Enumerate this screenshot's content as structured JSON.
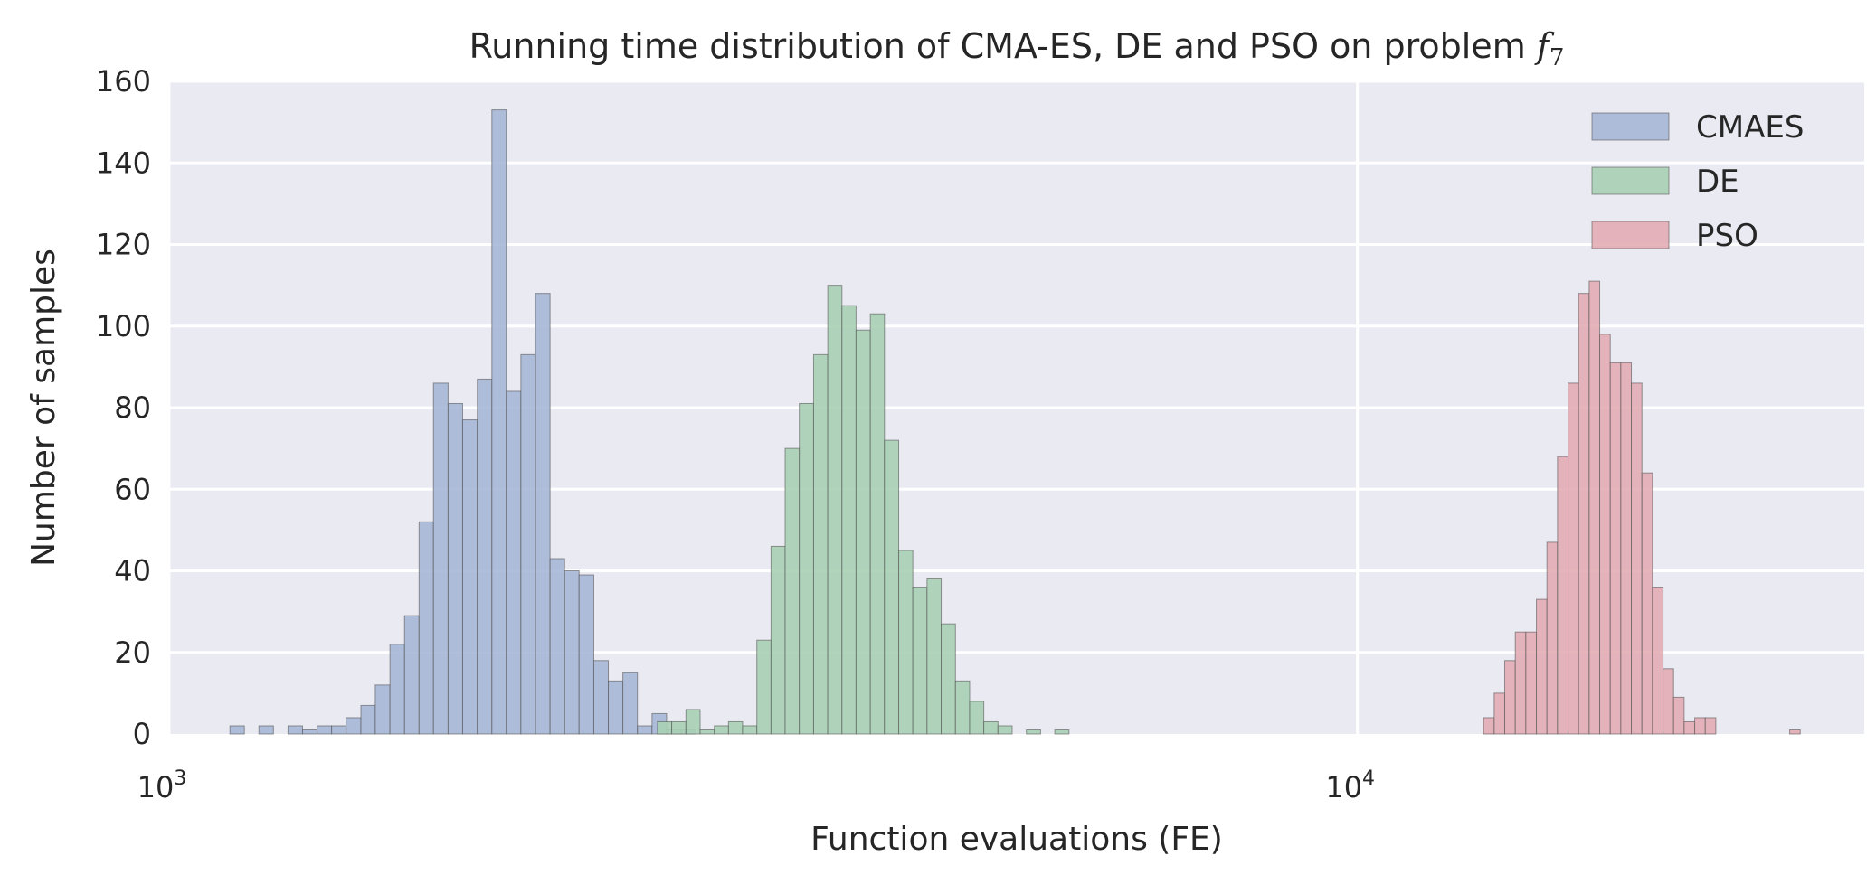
{
  "chart_data": {
    "type": "bar",
    "title": {
      "text": "Running time distribution of CMA-ES, DE and PSO on problem ",
      "math_symbol": "f",
      "math_subscript": "7"
    },
    "xlabel": "Function evaluations (FE)",
    "ylabel": "Number of samples",
    "x_scale": "log",
    "xlim": [
      1000,
      26700
    ],
    "ylim": [
      0,
      160
    ],
    "x_ticks": [
      {
        "value": 1000,
        "base": "10",
        "exponent": "3"
      },
      {
        "value": 10000,
        "base": "10",
        "exponent": "4"
      }
    ],
    "y_ticks": [
      0,
      20,
      40,
      60,
      80,
      100,
      120,
      140,
      160
    ],
    "grid": true,
    "legend": {
      "position": "top-right"
    },
    "background": "#eaeaf2",
    "series": [
      {
        "name": "CMAES",
        "color": "#a6b7d6",
        "bin_edges": [
          1125,
          1157,
          1190,
          1224,
          1259,
          1295,
          1332,
          1370,
          1409,
          1450,
          1491,
          1534,
          1578,
          1623,
          1669,
          1717,
          1766,
          1817,
          1869,
          1922,
          1977,
          2034,
          2092,
          2152,
          2213,
          2277,
          2342,
          2409,
          2478,
          2549,
          2622,
          2697,
          2774
        ],
        "counts": [
          2,
          0,
          2,
          0,
          2,
          1,
          2,
          2,
          4,
          7,
          12,
          22,
          29,
          52,
          86,
          81,
          77,
          87,
          153,
          84,
          93,
          108,
          43,
          40,
          39,
          18,
          13,
          15,
          2,
          5,
          1,
          1
        ]
      },
      {
        "name": "DE",
        "color": "#a8d0b4",
        "bin_edges": [
          2576,
          2648,
          2722,
          2798,
          2876,
          2956,
          3038,
          3123,
          3210,
          3299,
          3391,
          3486,
          3583,
          3683,
          3785,
          3891,
          3999,
          4111,
          4225,
          4343,
          4464,
          4589,
          4717,
          4848,
          4983,
          5122,
          5265,
          5412,
          5563,
          5718,
          5877,
          6041
        ],
        "counts": [
          3,
          3,
          6,
          1,
          2,
          3,
          2,
          23,
          46,
          70,
          81,
          93,
          110,
          105,
          99,
          103,
          72,
          45,
          36,
          38,
          27,
          13,
          8,
          3,
          2,
          0,
          1,
          0,
          1,
          0,
          0
        ]
      },
      {
        "name": "PSO",
        "color": "#e3acb4",
        "bin_edges": [
          12770,
          13034,
          13303,
          13578,
          13858,
          14145,
          14437,
          14735,
          15040,
          15350,
          15668,
          15991,
          16322,
          16659,
          17003,
          17355,
          17713,
          18079,
          18453,
          18834,
          19223,
          19621,
          20026,
          20440,
          20862,
          21293,
          21733,
          22182,
          22640,
          23108,
          23585
        ],
        "counts": [
          4,
          10,
          18,
          25,
          25,
          33,
          47,
          68,
          86,
          108,
          111,
          98,
          91,
          91,
          86,
          64,
          36,
          16,
          9,
          3,
          4,
          4,
          0,
          0,
          0,
          0,
          0,
          0,
          0,
          1
        ]
      }
    ]
  }
}
